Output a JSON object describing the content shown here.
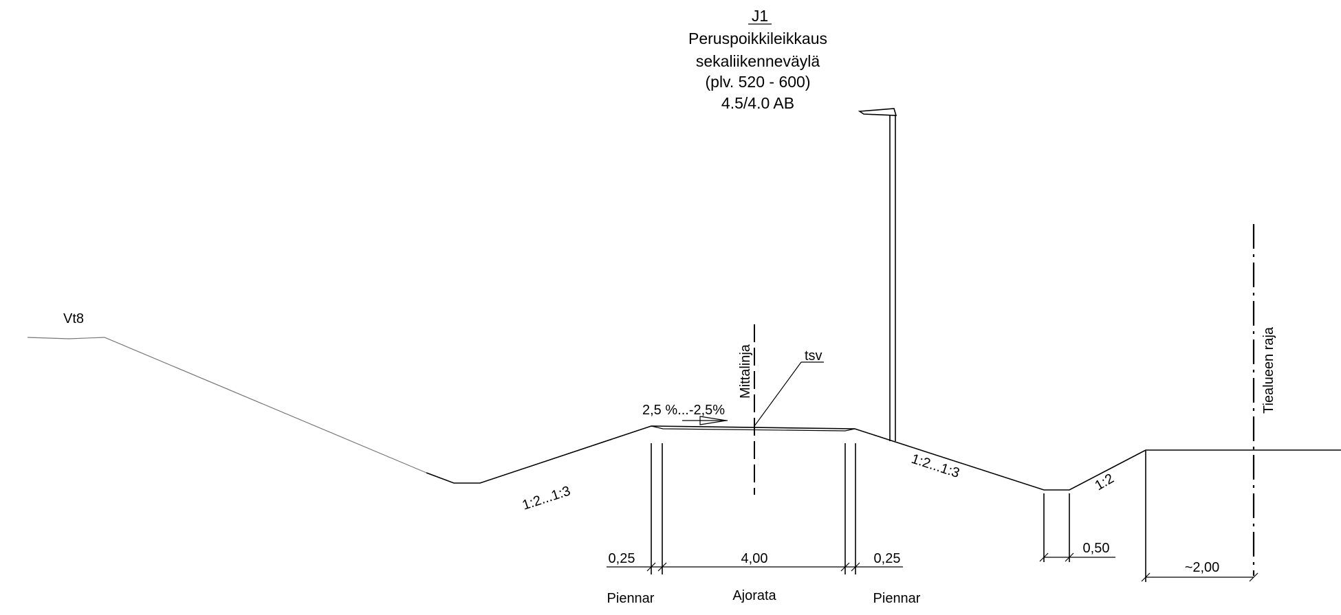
{
  "title": {
    "code": "J1",
    "line1": "Peruspoikkileikkaus",
    "line2": "sekaliikenneväylä",
    "line3": "(plv. 520 - 600)",
    "line4": "4.5/4.0 AB"
  },
  "labels": {
    "road": "Vt8",
    "centerline": "Mittalinja",
    "tsv": "tsv",
    "crossfall": "2,5 %...-2,5%",
    "slope_left": "1:2...1:3",
    "slope_right": "1:2...1:3",
    "slope_ditch": "1:2",
    "boundary": "Tiealueen raja"
  },
  "dimensions": {
    "shoulder_left": "0,25",
    "carriageway": "4,00",
    "shoulder_right": "0,25",
    "ditch_bottom": "0,50",
    "boundary_offset": "~2,00"
  },
  "bottom_labels": {
    "shoulder_left": "Piennar",
    "carriageway": "Ajorata",
    "shoulder_right": "Piennar"
  }
}
